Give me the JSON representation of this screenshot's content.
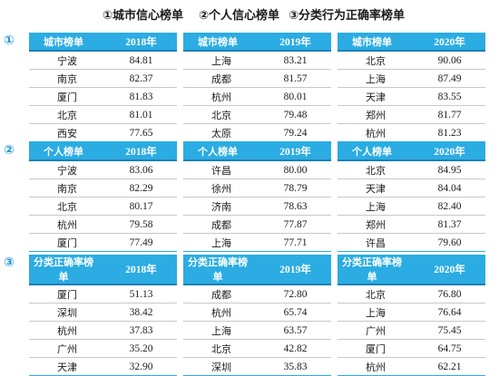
{
  "header": {
    "title1": "①城市信心榜单",
    "title2": "②个人信心榜单",
    "title3": "③分类行为正确率榜单"
  },
  "sections": [
    {
      "badge": "①",
      "tables": [
        {
          "h1": "城市榜单",
          "h2": "2018年",
          "rows": [
            [
              "宁波",
              "84.81"
            ],
            [
              "南京",
              "82.37"
            ],
            [
              "厦门",
              "81.83"
            ],
            [
              "北京",
              "81.01"
            ],
            [
              "西安",
              "77.65"
            ]
          ]
        },
        {
          "h1": "城市榜单",
          "h2": "2019年",
          "rows": [
            [
              "上海",
              "83.21"
            ],
            [
              "成都",
              "81.57"
            ],
            [
              "杭州",
              "80.01"
            ],
            [
              "北京",
              "79.48"
            ],
            [
              "太原",
              "79.24"
            ]
          ]
        },
        {
          "h1": "城市榜单",
          "h2": "2020年",
          "rows": [
            [
              "北京",
              "90.06"
            ],
            [
              "上海",
              "87.49"
            ],
            [
              "天津",
              "83.55"
            ],
            [
              "郑州",
              "81.77"
            ],
            [
              "杭州",
              "81.23"
            ]
          ]
        }
      ]
    },
    {
      "badge": "②",
      "tables": [
        {
          "h1": "个人榜单",
          "h2": "2018年",
          "rows": [
            [
              "宁波",
              "83.06"
            ],
            [
              "南京",
              "82.29"
            ],
            [
              "北京",
              "80.17"
            ],
            [
              "杭州",
              "79.58"
            ],
            [
              "厦门",
              "77.49"
            ]
          ]
        },
        {
          "h1": "个人榜单",
          "h2": "2019年",
          "rows": [
            [
              "许昌",
              "80.00"
            ],
            [
              "徐州",
              "78.79"
            ],
            [
              "济南",
              "78.63"
            ],
            [
              "成都",
              "77.87"
            ],
            [
              "上海",
              "77.71"
            ]
          ]
        },
        {
          "h1": "个人榜单",
          "h2": "2020年",
          "rows": [
            [
              "北京",
              "84.95"
            ],
            [
              "天津",
              "84.04"
            ],
            [
              "上海",
              "82.40"
            ],
            [
              "郑州",
              "81.37"
            ],
            [
              "许昌",
              "79.60"
            ]
          ]
        }
      ]
    },
    {
      "badge": "③",
      "tables": [
        {
          "h1": "分类正确率榜单",
          "h2": "2018年",
          "rows": [
            [
              "厦门",
              "51.13"
            ],
            [
              "深圳",
              "38.42"
            ],
            [
              "杭州",
              "37.83"
            ],
            [
              "广州",
              "35.20"
            ],
            [
              "天津",
              "32.90"
            ]
          ]
        },
        {
          "h1": "分类正确率榜单",
          "h2": "2019年",
          "rows": [
            [
              "成都",
              "72.80"
            ],
            [
              "杭州",
              "65.74"
            ],
            [
              "上海",
              "63.57"
            ],
            [
              "北京",
              "42.82"
            ],
            [
              "深圳",
              "35.83"
            ]
          ]
        },
        {
          "h1": "分类正确率榜单",
          "h2": "2020年",
          "rows": [
            [
              "北京",
              "76.80"
            ],
            [
              "上海",
              "76.64"
            ],
            [
              "广州",
              "75.45"
            ],
            [
              "厦门",
              "64.75"
            ],
            [
              "杭州",
              "62.21"
            ]
          ]
        }
      ]
    }
  ]
}
